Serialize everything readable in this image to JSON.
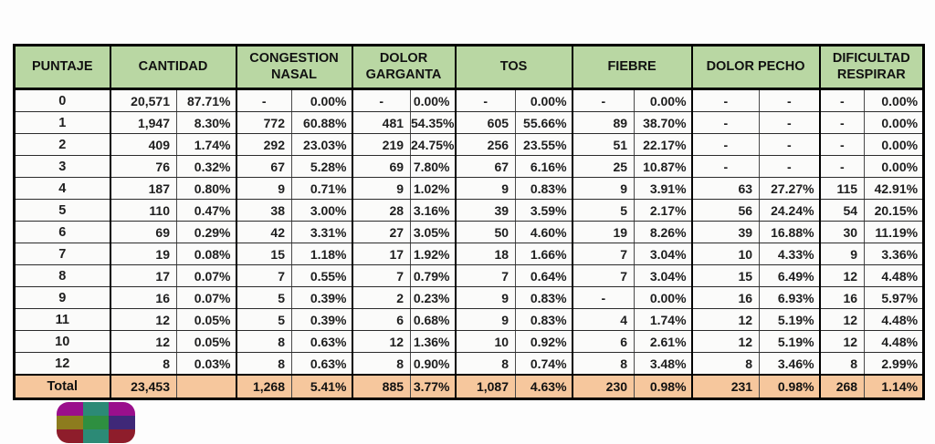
{
  "colors": {
    "header_green": "#b9d7a3",
    "total_salmon": "#f6c79d",
    "row_bg": "#fbfbfa",
    "grid": "#2b2b2b",
    "border_black": "#000000",
    "text": "#1e1e1e"
  },
  "chart_data": {
    "type": "table",
    "columns": [
      "PUNTAJE",
      "CANTIDAD",
      "CONGESTION NASAL",
      "DOLOR GARGANTA",
      "TOS",
      "FIEBRE",
      "DOLOR PECHO",
      "DIFICULTAD RESPIRAR"
    ],
    "sub_columns_per_group": [
      "count",
      "percent"
    ],
    "rows": [
      [
        "0",
        "20,571",
        "87.71%",
        "-",
        "0.00%",
        "-",
        "0.00%",
        "-",
        "0.00%",
        "-",
        "0.00%",
        "-",
        "-",
        "-",
        "0.00%"
      ],
      [
        "1",
        "1,947",
        "8.30%",
        "772",
        "60.88%",
        "481",
        "54.35%",
        "605",
        "55.66%",
        "89",
        "38.70%",
        "-",
        "-",
        "-",
        "0.00%"
      ],
      [
        "2",
        "409",
        "1.74%",
        "292",
        "23.03%",
        "219",
        "24.75%",
        "256",
        "23.55%",
        "51",
        "22.17%",
        "-",
        "-",
        "-",
        "0.00%"
      ],
      [
        "3",
        "76",
        "0.32%",
        "67",
        "5.28%",
        "69",
        "7.80%",
        "67",
        "6.16%",
        "25",
        "10.87%",
        "-",
        "-",
        "-",
        "0.00%"
      ],
      [
        "4",
        "187",
        "0.80%",
        "9",
        "0.71%",
        "9",
        "1.02%",
        "9",
        "0.83%",
        "9",
        "3.91%",
        "63",
        "27.27%",
        "115",
        "42.91%"
      ],
      [
        "5",
        "110",
        "0.47%",
        "38",
        "3.00%",
        "28",
        "3.16%",
        "39",
        "3.59%",
        "5",
        "2.17%",
        "56",
        "24.24%",
        "54",
        "20.15%"
      ],
      [
        "6",
        "69",
        "0.29%",
        "42",
        "3.31%",
        "27",
        "3.05%",
        "50",
        "4.60%",
        "19",
        "8.26%",
        "39",
        "16.88%",
        "30",
        "11.19%"
      ],
      [
        "7",
        "19",
        "0.08%",
        "15",
        "1.18%",
        "17",
        "1.92%",
        "18",
        "1.66%",
        "7",
        "3.04%",
        "10",
        "4.33%",
        "9",
        "3.36%"
      ],
      [
        "8",
        "17",
        "0.07%",
        "7",
        "0.55%",
        "7",
        "0.79%",
        "7",
        "0.64%",
        "7",
        "3.04%",
        "15",
        "6.49%",
        "12",
        "4.48%"
      ],
      [
        "9",
        "16",
        "0.07%",
        "5",
        "0.39%",
        "2",
        "0.23%",
        "9",
        "0.83%",
        "-",
        "0.00%",
        "16",
        "6.93%",
        "16",
        "5.97%"
      ],
      [
        "11",
        "12",
        "0.05%",
        "5",
        "0.39%",
        "6",
        "0.68%",
        "9",
        "0.83%",
        "4",
        "1.74%",
        "12",
        "5.19%",
        "12",
        "4.48%"
      ],
      [
        "10",
        "12",
        "0.05%",
        "8",
        "0.63%",
        "12",
        "1.36%",
        "10",
        "0.92%",
        "6",
        "2.61%",
        "12",
        "5.19%",
        "12",
        "4.48%"
      ],
      [
        "12",
        "8",
        "0.03%",
        "8",
        "0.63%",
        "8",
        "0.90%",
        "8",
        "0.74%",
        "8",
        "3.48%",
        "8",
        "3.46%",
        "8",
        "2.99%"
      ]
    ],
    "total": [
      "Total",
      "23,453",
      "",
      "1,268",
      "5.41%",
      "885",
      "3.77%",
      "1,087",
      "4.63%",
      "230",
      "0.98%",
      "231",
      "0.98%",
      "268",
      "1.14%"
    ]
  },
  "logo": {
    "tiles": [
      "#9a0f8c",
      "#2c8a76",
      "#9a0f8c",
      "#8d7c1e",
      "#2e8f40",
      "#3f2878",
      "#8e1d2b",
      "#2c8a76",
      "#8e1d2b"
    ]
  }
}
